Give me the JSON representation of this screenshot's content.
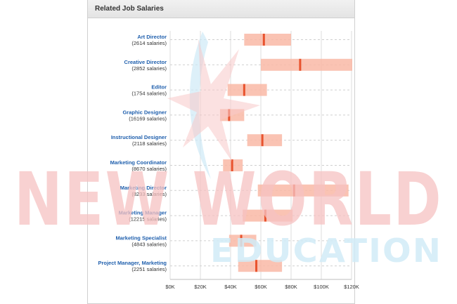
{
  "panel": {
    "title": "Related Job Salaries"
  },
  "watermark": {
    "line1": "NEW WORLD",
    "line2": "EDUCATION"
  },
  "colors": {
    "range_fill": "#f9b9a6",
    "median_line": "#e8532e",
    "link": "#1f5fad",
    "watermark_red": "#f6c2c2",
    "watermark_blue": "#d2ecf7"
  },
  "chart_data": {
    "type": "range",
    "xlim": [
      0,
      120000
    ],
    "ticks": [
      0,
      20000,
      40000,
      60000,
      80000,
      100000,
      120000
    ],
    "tick_labels": [
      "$0K",
      "$20K",
      "$40K",
      "$60K",
      "$80K",
      "$100K",
      "$120K"
    ],
    "grid": true,
    "jobs": [
      {
        "title": "Art Director",
        "count": "(2614 salaries)",
        "low": 49000,
        "high": 80000,
        "median": 62000
      },
      {
        "title": "Creative Director",
        "count": "(2852 salaries)",
        "low": 60000,
        "high": 123000,
        "median": 86000
      },
      {
        "title": "Editor",
        "count": "(1754 salaries)",
        "low": 38000,
        "high": 64000,
        "median": 49000
      },
      {
        "title": "Graphic Designer",
        "count": "(16169 salaries)",
        "low": 33000,
        "high": 49000,
        "median": 39000
      },
      {
        "title": "Instructional Designer",
        "count": "(2118 salaries)",
        "low": 51000,
        "high": 74000,
        "median": 61000
      },
      {
        "title": "Marketing Coordinator",
        "count": "(8670 salaries)",
        "low": 35000,
        "high": 48000,
        "median": 41000
      },
      {
        "title": "Marketing Director",
        "count": "(8233 salaries)",
        "low": 58000,
        "high": 118000,
        "median": 82000
      },
      {
        "title": "Marketing Manager",
        "count": "(12215 salaries)",
        "low": 48000,
        "high": 81000,
        "median": 63000
      },
      {
        "title": "Marketing Specialist",
        "count": "(4843 salaries)",
        "low": 39000,
        "high": 57000,
        "median": 47000
      },
      {
        "title": "Project Manager, Marketing",
        "count": "(2251 salaries)",
        "low": 45000,
        "high": 74000,
        "median": 57000
      }
    ]
  }
}
